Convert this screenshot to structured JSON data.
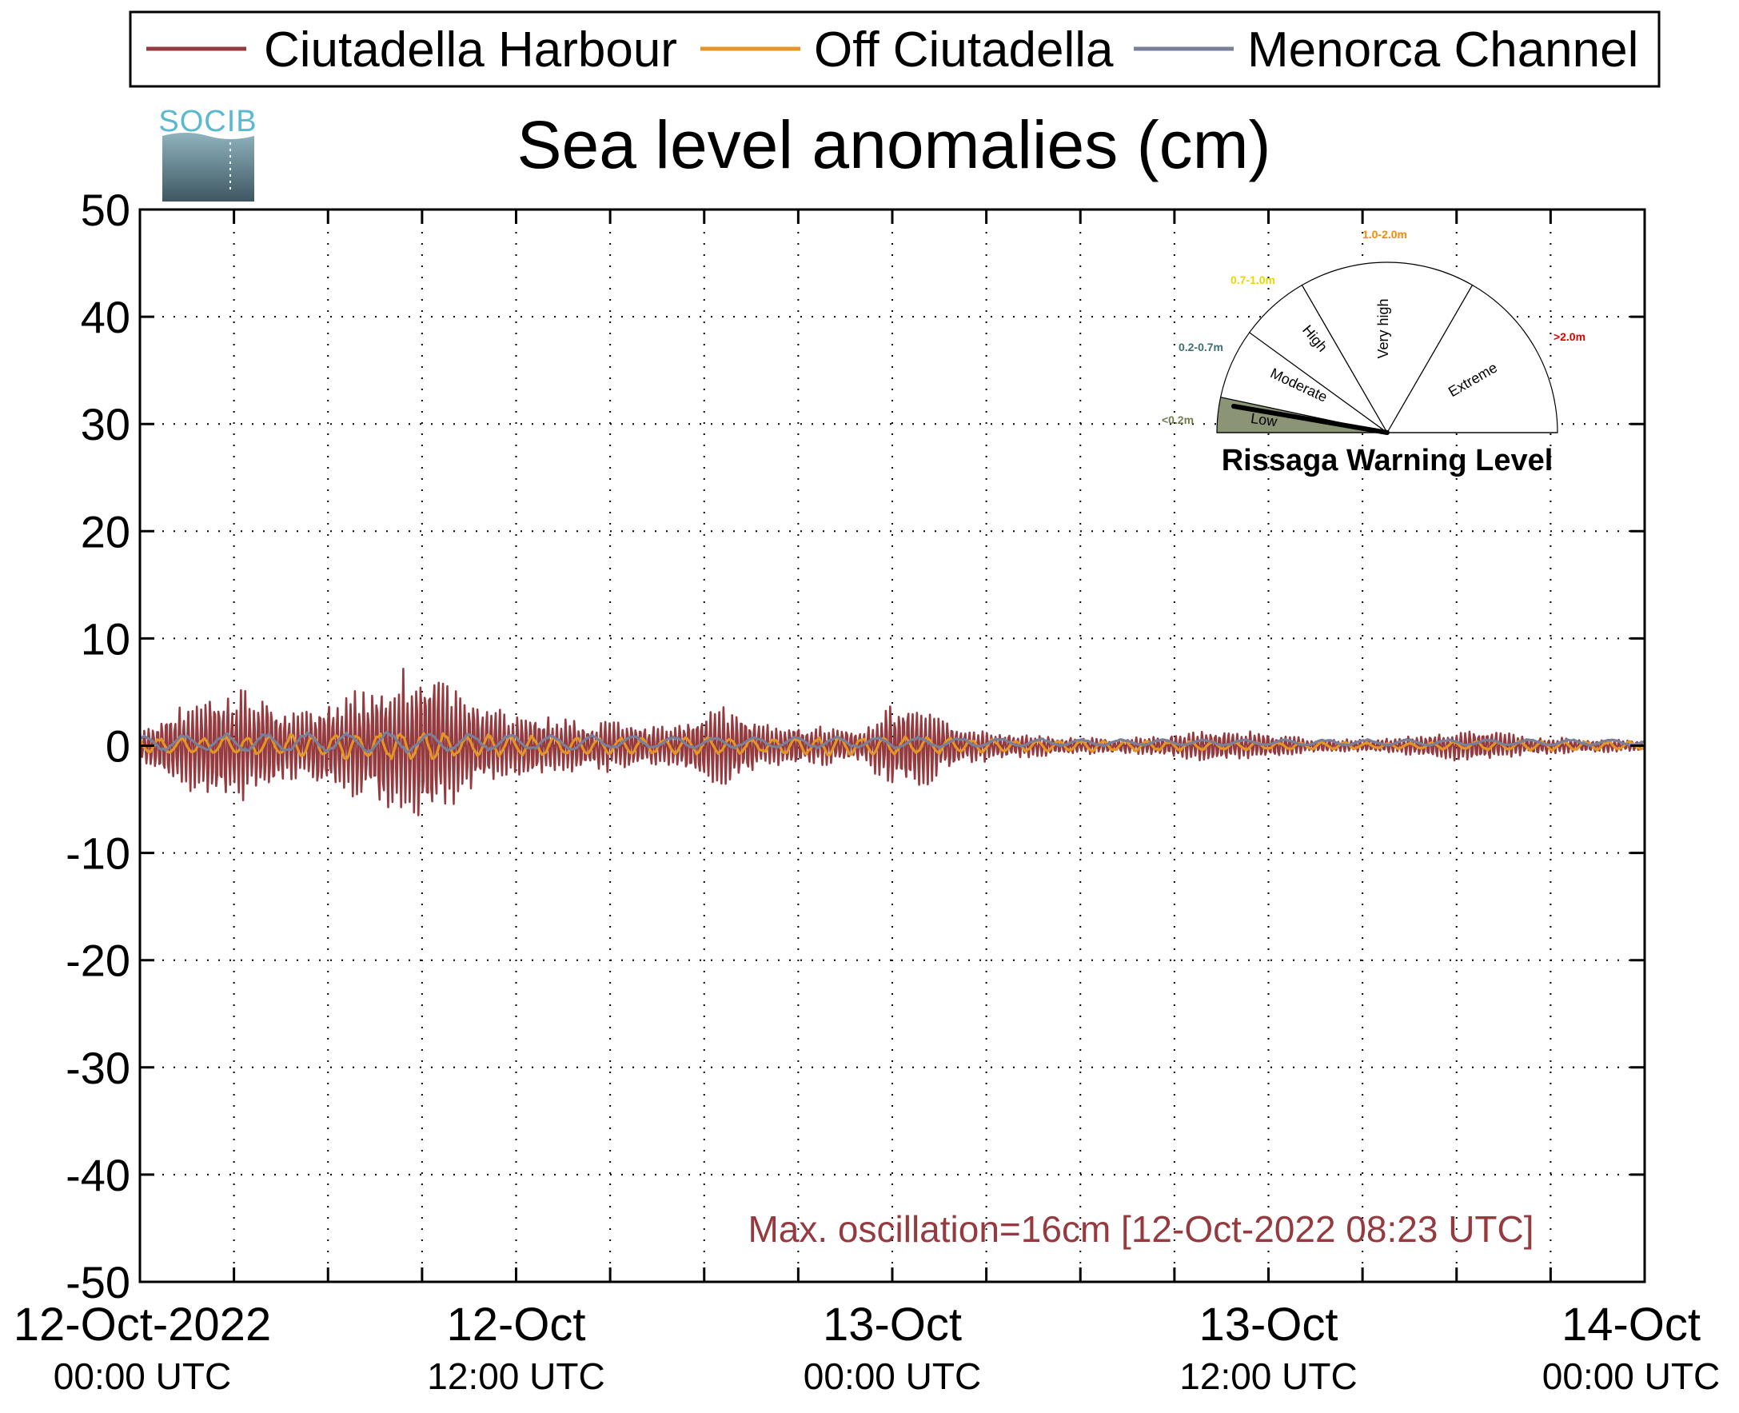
{
  "chart_data": {
    "type": "line",
    "title": "Sea level anomalies (cm)",
    "ylim": [
      -50,
      50
    ],
    "yticks": [
      "50",
      "40",
      "30",
      "20",
      "10",
      "0",
      "-10",
      "-20",
      "-30",
      "-40",
      "-50"
    ],
    "x_start": "12-Oct-2022 00:00 UTC",
    "x_end": "14-Oct-2022 00:00 UTC",
    "xtick_labels": [
      {
        "line1": "12-Oct-2022",
        "line2": "00:00 UTC"
      },
      {
        "line1": "12-Oct",
        "line2": "12:00 UTC"
      },
      {
        "line1": "13-Oct",
        "line2": "00:00 UTC"
      },
      {
        "line1": "13-Oct",
        "line2": "12:00 UTC"
      },
      {
        "line1": "14-Oct",
        "line2": "00:00 UTC"
      }
    ],
    "grid": true,
    "legend_position": "top",
    "series": [
      {
        "name": "Ciutadella Harbour",
        "color": "#953B3F",
        "envelope": {
          "hours": [
            0,
            1,
            2,
            3,
            4,
            5,
            6,
            7,
            8,
            9,
            10,
            11,
            12,
            13,
            14,
            15,
            16,
            17,
            18,
            19,
            20,
            21,
            22,
            23,
            24,
            25,
            26,
            27,
            28,
            29,
            30,
            31,
            32,
            33,
            34,
            35,
            36,
            37,
            38,
            39,
            40,
            41,
            42,
            43,
            44,
            45,
            46,
            47,
            48
          ],
          "amplitude_cm": [
            1.5,
            3.5,
            5.0,
            5.5,
            5.0,
            3.0,
            4.5,
            5.5,
            7.0,
            7.5,
            6.0,
            4.0,
            3.0,
            3.0,
            2.5,
            2.5,
            2.0,
            2.0,
            4.0,
            3.5,
            2.0,
            2.0,
            1.8,
            1.5,
            4.5,
            4.0,
            2.0,
            1.5,
            1.2,
            1.0,
            0.8,
            0.8,
            0.8,
            1.2,
            1.5,
            1.5,
            1.2,
            0.8,
            0.6,
            0.6,
            0.8,
            1.0,
            1.5,
            1.5,
            1.0,
            0.8,
            0.7,
            0.6,
            0.5
          ]
        }
      },
      {
        "name": "Off Ciutadella",
        "color": "#E59525",
        "envelope": {
          "hours": [
            0,
            4,
            8,
            12,
            16,
            20,
            24,
            28,
            32,
            36,
            40,
            44,
            48
          ],
          "amplitude_cm": [
            0.8,
            1.0,
            1.5,
            1.0,
            0.8,
            0.8,
            1.0,
            0.6,
            0.5,
            0.4,
            0.3,
            0.5,
            0.4
          ]
        }
      },
      {
        "name": "Menorca Channel",
        "color": "#7A7F9A",
        "envelope": {
          "hours": [
            0,
            4,
            8,
            12,
            16,
            20,
            24,
            28,
            32,
            36,
            40,
            44,
            48
          ],
          "amplitude_cm": [
            0.7,
            1.0,
            1.0,
            0.8,
            0.6,
            0.5,
            0.6,
            0.4,
            0.3,
            0.3,
            0.3,
            0.3,
            0.3
          ]
        }
      }
    ],
    "annotation": {
      "text": "Max. oscillation=16cm [12-Oct-2022 08:23 UTC]",
      "color": "#953B3F"
    }
  },
  "logo": {
    "text": "SOCIB",
    "color": "#5BB8D1",
    "icon": "socib-logo"
  },
  "gauge": {
    "title": "Rissaga Warning Level",
    "needle_level": "Low",
    "sectors": [
      {
        "label": "Low",
        "range": "<0.2m",
        "range_color": "#6E7F4E",
        "active_fill": "#8B9474"
      },
      {
        "label": "Moderate",
        "range": "0.2-0.7m",
        "range_color": "#3F6E73"
      },
      {
        "label": "High",
        "range": "0.7-1.0m",
        "range_color": "#E6D800"
      },
      {
        "label": "Very high",
        "range": "1.0-2.0m",
        "range_color": "#F08C00"
      },
      {
        "label": "Extreme",
        "range": ">2.0m",
        "range_color": "#E00000"
      }
    ]
  }
}
